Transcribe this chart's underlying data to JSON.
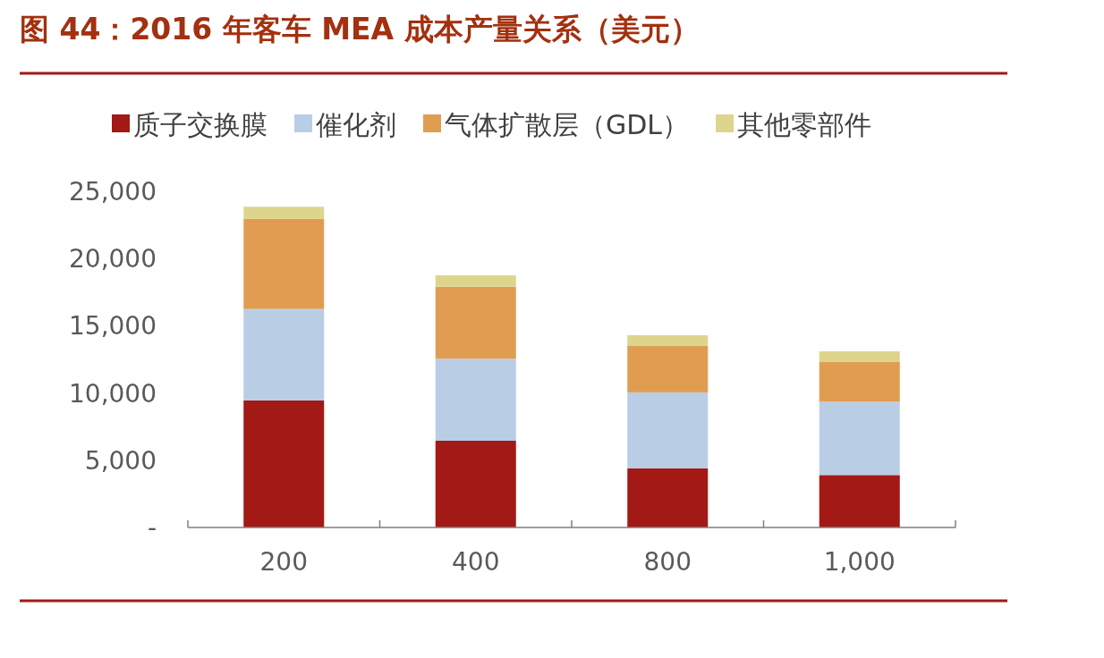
{
  "chart_data": {
    "type": "bar",
    "stacked": true,
    "title": "图 44：2016 年客车 MEA 成本产量关系（美元）",
    "categories": [
      "200",
      "400",
      "800",
      "1,000"
    ],
    "series": [
      {
        "name": "质子交换膜",
        "color": "#a31916",
        "values": [
          9450,
          6450,
          4400,
          3900
        ]
      },
      {
        "name": "催化剂",
        "color": "#b9cde5",
        "values": [
          6800,
          6100,
          5650,
          5450
        ]
      },
      {
        "name": "气体扩散层（GDL）",
        "color": "#e09d52",
        "values": [
          6700,
          5350,
          3450,
          2950
        ]
      },
      {
        "name": "其他零部件",
        "color": "#ddd58c",
        "values": [
          900,
          850,
          800,
          800
        ]
      }
    ],
    "ylim": [
      0,
      25000
    ],
    "yticks": [
      {
        "value": 0,
        "label": "-"
      },
      {
        "value": 5000,
        "label": "5,000"
      },
      {
        "value": 10000,
        "label": "10,000"
      },
      {
        "value": 15000,
        "label": "15,000"
      },
      {
        "value": 20000,
        "label": "20,000"
      },
      {
        "value": 25000,
        "label": "25,000"
      }
    ],
    "legend": "top"
  }
}
